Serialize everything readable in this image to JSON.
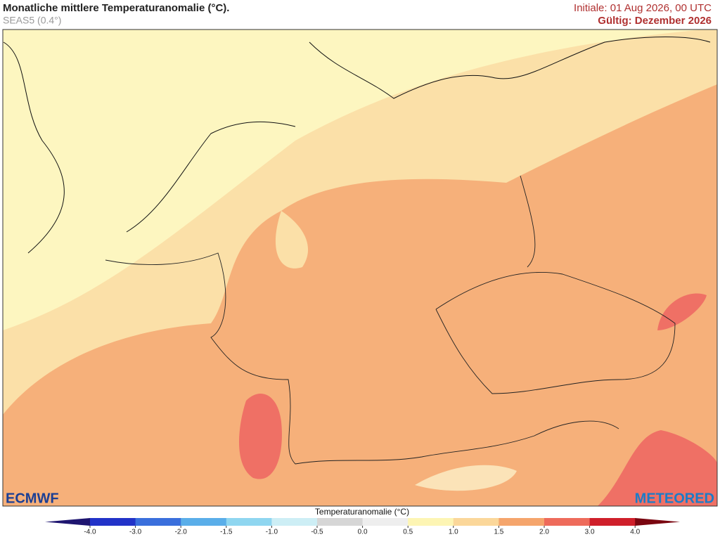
{
  "header": {
    "title": "Monatliche mittlere Temperaturanomalie (°C).",
    "subtitle": "SEAS5 (0.4°)",
    "init": "Initiale: 01 Aug 2026, 00 UTC",
    "valid": "Gültig: Dezember 2026"
  },
  "colorbar": {
    "title": "Temperaturanomalie (°C)",
    "labels": [
      "-4.0",
      "-3.0",
      "-2.0",
      "-1.5",
      "-1.0",
      "-0.5",
      "0.0",
      "0.5",
      "1.0",
      "1.5",
      "2.0",
      "3.0",
      "4.0"
    ],
    "low_color": "#1e1570",
    "high_color": "#7a0610",
    "colors": [
      "#2233c8",
      "#3a6fdc",
      "#5aaee9",
      "#8fd6f0",
      "#cdeef5",
      "#d6d6d6",
      "#eeeeee",
      "#fdf5b4",
      "#fbd79a",
      "#f5a56c",
      "#ee6b5b",
      "#cf1f2a"
    ]
  },
  "logos": {
    "left": "ECMWF",
    "right": "METEORED"
  }
}
